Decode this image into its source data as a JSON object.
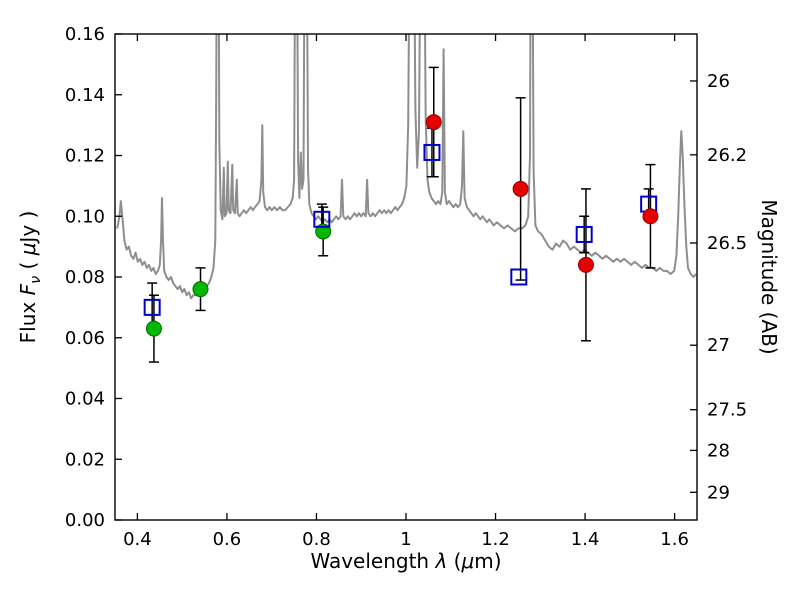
{
  "figure": {
    "background": "#ffffff"
  },
  "chart_data": {
    "type": "line+scatter",
    "title": "",
    "xlabel": "Wavelength λ (μm)",
    "ylabel": "Flux Fν ( μJy )",
    "ylabel_right": "Magnitude (AB)",
    "xlabel_parts": {
      "prefix": "Wavelength ",
      "lambda": "λ",
      "mid": " (",
      "mu": "μ",
      "suffix": "m)"
    },
    "ylabel_parts": {
      "prefix": "Flux ",
      "symbol": "F",
      "sub": "ν",
      "open": " ( ",
      "mu": "μ",
      "close": "Jy )"
    },
    "xlim": [
      0.35,
      1.65
    ],
    "ylim": [
      0.0,
      0.16
    ],
    "grid": false,
    "legend": "none",
    "xticks": [
      {
        "v": 0.4,
        "label": "0.4"
      },
      {
        "v": 0.6,
        "label": "0.6"
      },
      {
        "v": 0.8,
        "label": "0.8"
      },
      {
        "v": 1.0,
        "label": "1"
      },
      {
        "v": 1.2,
        "label": "1.2"
      },
      {
        "v": 1.4,
        "label": "1.4"
      },
      {
        "v": 1.6,
        "label": "1.6"
      }
    ],
    "yticks": [
      {
        "v": 0.0,
        "label": "0.00"
      },
      {
        "v": 0.02,
        "label": "0.02"
      },
      {
        "v": 0.04,
        "label": "0.04"
      },
      {
        "v": 0.06,
        "label": "0.06"
      },
      {
        "v": 0.08,
        "label": "0.08"
      },
      {
        "v": 0.1,
        "label": "0.10"
      },
      {
        "v": 0.12,
        "label": "0.12"
      },
      {
        "v": 0.14,
        "label": "0.14"
      },
      {
        "v": 0.16,
        "label": "0.16"
      }
    ],
    "yticks_right": [
      {
        "mag": 26,
        "flux": 0.14454,
        "label": "26"
      },
      {
        "mag": 26.2,
        "flux": 0.12023,
        "label": "26.2"
      },
      {
        "mag": 26.5,
        "flux": 0.0912,
        "label": "26.5"
      },
      {
        "mag": 27,
        "flux": 0.05754,
        "label": "27"
      },
      {
        "mag": 27.5,
        "flux": 0.03631,
        "label": "27.5"
      },
      {
        "mag": 28,
        "flux": 0.02291,
        "label": "28"
      },
      {
        "mag": 29,
        "flux": 0.00912,
        "label": "29"
      }
    ],
    "spectrum": {
      "name": "model-spectrum",
      "color": "#8e8e8e",
      "line_width": 2,
      "points": [
        [
          0.355,
          0.096
        ],
        [
          0.36,
          0.1
        ],
        [
          0.363,
          0.105
        ],
        [
          0.367,
          0.099
        ],
        [
          0.371,
          0.092
        ],
        [
          0.376,
          0.089
        ],
        [
          0.381,
          0.09
        ],
        [
          0.386,
          0.087
        ],
        [
          0.391,
          0.086
        ],
        [
          0.396,
          0.088
        ],
        [
          0.401,
          0.085
        ],
        [
          0.406,
          0.086
        ],
        [
          0.411,
          0.084
        ],
        [
          0.416,
          0.085
        ],
        [
          0.421,
          0.083
        ],
        [
          0.426,
          0.084
        ],
        [
          0.431,
          0.082
        ],
        [
          0.436,
          0.083
        ],
        [
          0.441,
          0.081
        ],
        [
          0.446,
          0.082
        ],
        [
          0.45,
          0.084
        ],
        [
          0.453,
          0.092
        ],
        [
          0.455,
          0.106
        ],
        [
          0.457,
          0.093
        ],
        [
          0.46,
          0.082
        ],
        [
          0.465,
          0.08
        ],
        [
          0.47,
          0.079
        ],
        [
          0.475,
          0.08
        ],
        [
          0.48,
          0.078
        ],
        [
          0.485,
          0.077
        ],
        [
          0.49,
          0.076
        ],
        [
          0.495,
          0.077
        ],
        [
          0.5,
          0.075
        ],
        [
          0.505,
          0.076
        ],
        [
          0.51,
          0.074
        ],
        [
          0.515,
          0.075
        ],
        [
          0.52,
          0.073
        ],
        [
          0.525,
          0.074
        ],
        [
          0.53,
          0.074
        ],
        [
          0.535,
          0.075
        ],
        [
          0.54,
          0.076
        ],
        [
          0.545,
          0.075
        ],
        [
          0.55,
          0.076
        ],
        [
          0.555,
          0.077
        ],
        [
          0.56,
          0.078
        ],
        [
          0.565,
          0.08
        ],
        [
          0.57,
          0.083
        ],
        [
          0.574,
          0.092
        ],
        [
          0.576,
          0.14
        ],
        [
          0.578,
          0.21
        ],
        [
          0.581,
          0.21
        ],
        [
          0.583,
          0.125
        ],
        [
          0.586,
          0.102
        ],
        [
          0.59,
          0.099
        ],
        [
          0.593,
          0.116
        ],
        [
          0.595,
          0.1
        ],
        [
          0.599,
          0.101
        ],
        [
          0.602,
          0.118
        ],
        [
          0.604,
          0.102
        ],
        [
          0.608,
          0.101
        ],
        [
          0.612,
          0.117
        ],
        [
          0.614,
          0.102
        ],
        [
          0.618,
          0.101
        ],
        [
          0.622,
          0.112
        ],
        [
          0.624,
          0.101
        ],
        [
          0.628,
          0.1
        ],
        [
          0.633,
          0.101
        ],
        [
          0.638,
          0.102
        ],
        [
          0.643,
          0.101
        ],
        [
          0.648,
          0.102
        ],
        [
          0.653,
          0.103
        ],
        [
          0.658,
          0.102
        ],
        [
          0.663,
          0.103
        ],
        [
          0.668,
          0.104
        ],
        [
          0.673,
          0.105
        ],
        [
          0.677,
          0.112
        ],
        [
          0.679,
          0.13
        ],
        [
          0.681,
          0.108
        ],
        [
          0.685,
          0.103
        ],
        [
          0.69,
          0.102
        ],
        [
          0.695,
          0.103
        ],
        [
          0.7,
          0.102
        ],
        [
          0.706,
          0.103
        ],
        [
          0.712,
          0.102
        ],
        [
          0.718,
          0.103
        ],
        [
          0.724,
          0.102
        ],
        [
          0.73,
          0.102
        ],
        [
          0.736,
          0.103
        ],
        [
          0.742,
          0.104
        ],
        [
          0.747,
          0.106
        ],
        [
          0.75,
          0.112
        ],
        [
          0.753,
          0.21
        ],
        [
          0.756,
          0.21
        ],
        [
          0.759,
          0.118
        ],
        [
          0.762,
          0.106
        ],
        [
          0.765,
          0.121
        ],
        [
          0.768,
          0.109
        ],
        [
          0.771,
          0.112
        ],
        [
          0.774,
          0.21
        ],
        [
          0.778,
          0.21
        ],
        [
          0.781,
          0.116
        ],
        [
          0.784,
          0.104
        ],
        [
          0.789,
          0.101
        ],
        [
          0.794,
          0.1
        ],
        [
          0.799,
          0.099
        ],
        [
          0.804,
          0.1
        ],
        [
          0.809,
          0.099
        ],
        [
          0.814,
          0.098
        ],
        [
          0.819,
          0.099
        ],
        [
          0.824,
          0.098
        ],
        [
          0.829,
          0.099
        ],
        [
          0.834,
          0.098
        ],
        [
          0.839,
          0.099
        ],
        [
          0.844,
          0.1
        ],
        [
          0.849,
          0.099
        ],
        [
          0.854,
          0.1
        ],
        [
          0.857,
          0.112
        ],
        [
          0.86,
          0.1
        ],
        [
          0.865,
          0.099
        ],
        [
          0.87,
          0.1
        ],
        [
          0.875,
          0.099
        ],
        [
          0.88,
          0.1
        ],
        [
          0.885,
          0.101
        ],
        [
          0.89,
          0.1
        ],
        [
          0.895,
          0.101
        ],
        [
          0.9,
          0.1
        ],
        [
          0.905,
          0.101
        ],
        [
          0.91,
          0.1
        ],
        [
          0.913,
          0.112
        ],
        [
          0.916,
          0.101
        ],
        [
          0.921,
          0.1
        ],
        [
          0.926,
          0.101
        ],
        [
          0.931,
          0.1
        ],
        [
          0.936,
          0.101
        ],
        [
          0.941,
          0.102
        ],
        [
          0.946,
          0.101
        ],
        [
          0.951,
          0.102
        ],
        [
          0.956,
          0.101
        ],
        [
          0.961,
          0.102
        ],
        [
          0.966,
          0.101
        ],
        [
          0.971,
          0.102
        ],
        [
          0.976,
          0.103
        ],
        [
          0.981,
          0.102
        ],
        [
          0.986,
          0.103
        ],
        [
          0.991,
          0.104
        ],
        [
          0.996,
          0.106
        ],
        [
          1.001,
          0.11
        ],
        [
          1.005,
          0.13
        ],
        [
          1.009,
          0.21
        ],
        [
          1.017,
          0.21
        ],
        [
          1.021,
          0.135
        ],
        [
          1.025,
          0.116
        ],
        [
          1.029,
          0.128
        ],
        [
          1.033,
          0.21
        ],
        [
          1.04,
          0.21
        ],
        [
          1.044,
          0.132
        ],
        [
          1.048,
          0.112
        ],
        [
          1.052,
          0.108
        ],
        [
          1.057,
          0.106
        ],
        [
          1.062,
          0.105
        ],
        [
          1.067,
          0.104
        ],
        [
          1.072,
          0.105
        ],
        [
          1.077,
          0.104
        ],
        [
          1.081,
          0.108
        ],
        [
          1.084,
          0.155
        ],
        [
          1.087,
          0.108
        ],
        [
          1.091,
          0.104
        ],
        [
          1.096,
          0.105
        ],
        [
          1.101,
          0.104
        ],
        [
          1.106,
          0.103
        ],
        [
          1.111,
          0.104
        ],
        [
          1.116,
          0.103
        ],
        [
          1.121,
          0.104
        ],
        [
          1.125,
          0.11
        ],
        [
          1.128,
          0.128
        ],
        [
          1.131,
          0.106
        ],
        [
          1.136,
          0.103
        ],
        [
          1.141,
          0.102
        ],
        [
          1.146,
          0.101
        ],
        [
          1.151,
          0.1
        ],
        [
          1.156,
          0.101
        ],
        [
          1.161,
          0.1
        ],
        [
          1.166,
          0.099
        ],
        [
          1.171,
          0.1
        ],
        [
          1.176,
          0.099
        ],
        [
          1.181,
          0.098
        ],
        [
          1.186,
          0.099
        ],
        [
          1.191,
          0.098
        ],
        [
          1.196,
          0.097
        ],
        [
          1.203,
          0.098
        ],
        [
          1.211,
          0.097
        ],
        [
          1.219,
          0.096
        ],
        [
          1.227,
          0.097
        ],
        [
          1.235,
          0.096
        ],
        [
          1.243,
          0.095
        ],
        [
          1.251,
          0.096
        ],
        [
          1.259,
          0.096
        ],
        [
          1.267,
          0.097
        ],
        [
          1.273,
          0.1
        ],
        [
          1.277,
          0.12
        ],
        [
          1.279,
          0.21
        ],
        [
          1.282,
          0.21
        ],
        [
          1.285,
          0.115
        ],
        [
          1.289,
          0.097
        ],
        [
          1.295,
          0.095
        ],
        [
          1.303,
          0.094
        ],
        [
          1.311,
          0.092
        ],
        [
          1.319,
          0.09
        ],
        [
          1.327,
          0.089
        ],
        [
          1.335,
          0.091
        ],
        [
          1.343,
          0.09
        ],
        [
          1.351,
          0.092
        ],
        [
          1.359,
          0.091
        ],
        [
          1.367,
          0.089
        ],
        [
          1.375,
          0.09
        ],
        [
          1.383,
          0.089
        ],
        [
          1.391,
          0.088
        ],
        [
          1.399,
          0.089
        ],
        [
          1.407,
          0.088
        ],
        [
          1.415,
          0.087
        ],
        [
          1.423,
          0.088
        ],
        [
          1.431,
          0.087
        ],
        [
          1.439,
          0.086
        ],
        [
          1.447,
          0.087
        ],
        [
          1.455,
          0.086
        ],
        [
          1.463,
          0.085
        ],
        [
          1.471,
          0.086
        ],
        [
          1.479,
          0.085
        ],
        [
          1.487,
          0.086
        ],
        [
          1.495,
          0.085
        ],
        [
          1.503,
          0.084
        ],
        [
          1.511,
          0.085
        ],
        [
          1.519,
          0.084
        ],
        [
          1.527,
          0.083
        ],
        [
          1.535,
          0.084
        ],
        [
          1.543,
          0.083
        ],
        [
          1.551,
          0.083
        ],
        [
          1.559,
          0.082
        ],
        [
          1.567,
          0.083
        ],
        [
          1.575,
          0.082
        ],
        [
          1.583,
          0.082
        ],
        [
          1.591,
          0.081
        ],
        [
          1.599,
          0.082
        ],
        [
          1.604,
          0.087
        ],
        [
          1.608,
          0.1
        ],
        [
          1.612,
          0.118
        ],
        [
          1.615,
          0.128
        ],
        [
          1.618,
          0.12
        ],
        [
          1.622,
          0.103
        ],
        [
          1.626,
          0.09
        ],
        [
          1.63,
          0.083
        ],
        [
          1.636,
          0.081
        ],
        [
          1.642,
          0.08
        ],
        [
          1.648,
          0.081
        ]
      ]
    },
    "series": [
      {
        "name": "green-filled-circles",
        "marker": "circle",
        "fill": "#00b800",
        "edge": "#006600",
        "x": [
          0.437,
          0.541,
          0.815
        ],
        "y": [
          0.063,
          0.076,
          0.095
        ],
        "yerr": [
          0.011,
          0.007,
          0.008
        ]
      },
      {
        "name": "blue-open-squares",
        "marker": "square-open",
        "fill": "none",
        "edge": "#0000cd",
        "x": [
          0.433,
          0.812,
          1.058,
          1.252,
          1.398,
          1.542
        ],
        "y": [
          0.07,
          0.099,
          0.121,
          0.08,
          0.094,
          0.104
        ],
        "yerr": [
          0.008,
          0.005,
          0.008,
          0,
          0.006,
          0.005
        ]
      },
      {
        "name": "red-filled-circles",
        "marker": "circle",
        "fill": "#e60000",
        "edge": "#990000",
        "x": [
          1.062,
          1.256,
          1.402,
          1.546
        ],
        "y": [
          0.131,
          0.109,
          0.084,
          0.1
        ],
        "yerr": [
          0.018,
          0.03,
          0.025,
          0.017
        ]
      }
    ],
    "errorbar_color": "#000000"
  }
}
